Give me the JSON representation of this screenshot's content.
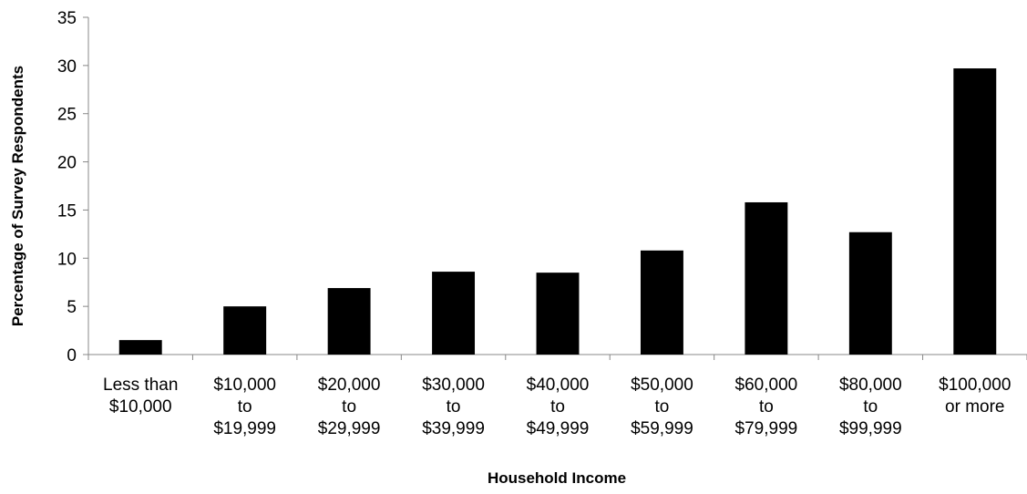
{
  "chart_data": {
    "type": "bar",
    "categories": [
      [
        "Less than",
        "$10,000"
      ],
      [
        "$10,000",
        "to",
        "$19,999"
      ],
      [
        "$20,000",
        "to",
        "$29,999"
      ],
      [
        "$30,000",
        "to",
        "$39,999"
      ],
      [
        "$40,000",
        "to",
        "$49,999"
      ],
      [
        "$50,000",
        "to",
        "$59,999"
      ],
      [
        "$60,000",
        "to",
        "$79,999"
      ],
      [
        "$80,000",
        "to",
        "$99,999"
      ],
      [
        "$100,000",
        "or more"
      ]
    ],
    "values": [
      1.5,
      5.0,
      6.9,
      8.6,
      8.5,
      10.8,
      15.8,
      12.7,
      29.7
    ],
    "title": "",
    "xlabel": "Household Income",
    "ylabel": "Percentage of Survey Respondents",
    "ylim": [
      0,
      35
    ],
    "yticks": [
      0,
      5,
      10,
      15,
      20,
      25,
      30,
      35
    ],
    "grid": false,
    "legend": "none",
    "bar_color": "#000000"
  }
}
